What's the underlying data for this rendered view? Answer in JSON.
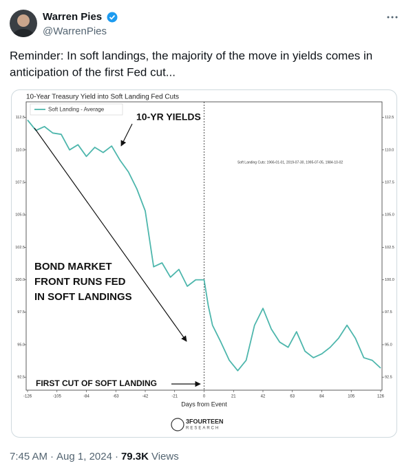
{
  "tweet": {
    "author": {
      "name": "Warren Pies",
      "handle": "@WarrenPies"
    },
    "text_lines": [
      "Reminder: In soft landings, the majority of the move in yields comes in",
      "anticipation of the first Fed cut..."
    ],
    "footer": {
      "time": "7:45 AM",
      "separator": "·",
      "date": "Aug 1, 2024",
      "views": "79.3K",
      "views_label": "Views"
    }
  },
  "chart": {
    "type": "line",
    "title": "10-Year Treasury Yield into Soft Landing Fed Cuts",
    "xlabel": "Days from Event",
    "x": [
      -126,
      -120,
      -114,
      -108,
      -102,
      -96,
      -90,
      -84,
      -78,
      -72,
      -66,
      -60,
      -54,
      -48,
      -42,
      -36,
      -30,
      -24,
      -18,
      -12,
      -6,
      0,
      3,
      6,
      12,
      18,
      24,
      30,
      36,
      42,
      48,
      54,
      60,
      66,
      72,
      78,
      84,
      90,
      96,
      102,
      108,
      114,
      120,
      126
    ],
    "series": [
      {
        "name": "Soft Landing - Average",
        "color": "#4db6ac",
        "values": [
          112.3,
          111.5,
          111.8,
          111.3,
          111.2,
          110.0,
          110.4,
          109.5,
          110.2,
          109.8,
          110.3,
          109.2,
          108.3,
          107.0,
          105.3,
          101.0,
          101.3,
          100.2,
          100.8,
          99.5,
          100.0,
          100.0,
          98.0,
          96.5,
          95.2,
          93.8,
          93.0,
          93.8,
          96.5,
          97.8,
          96.2,
          95.2,
          94.8,
          96.0,
          94.5,
          94.0,
          94.3,
          94.8,
          95.5,
          96.5,
          95.5,
          94.0,
          93.8,
          93.2
        ]
      }
    ],
    "xlim": [
      -127,
      127
    ],
    "ylim": [
      91.5,
      113.7
    ],
    "xticks": [
      -126,
      -105,
      -84,
      -63,
      -42,
      -21,
      0,
      21,
      42,
      63,
      84,
      105,
      126
    ],
    "yticks": [
      112.5,
      {
        "value": 110,
        "label": "110.0"
      },
      107.5,
      {
        "value": 105,
        "label": "105.0"
      },
      102.5,
      {
        "value": 100,
        "label": "100.0"
      },
      97.5,
      {
        "value": 95,
        "label": "95.0"
      },
      92.5
    ],
    "legend": "upper left",
    "annotations": {
      "yields": "10-YR YIELDS",
      "front_runs": [
        "BOND MARKET",
        "FRONT RUNS FED",
        "IN SOFT LANDINGS"
      ],
      "first_cut": "FIRST CUT OF SOFT LANDING",
      "cuts": "Soft Landing Cuts: 1966-01-01, 2019-07-30, 1995-07-05, 1984-10-02"
    },
    "logo": {
      "name": "3FOURTEEN",
      "sub": "RESEARCH"
    }
  }
}
